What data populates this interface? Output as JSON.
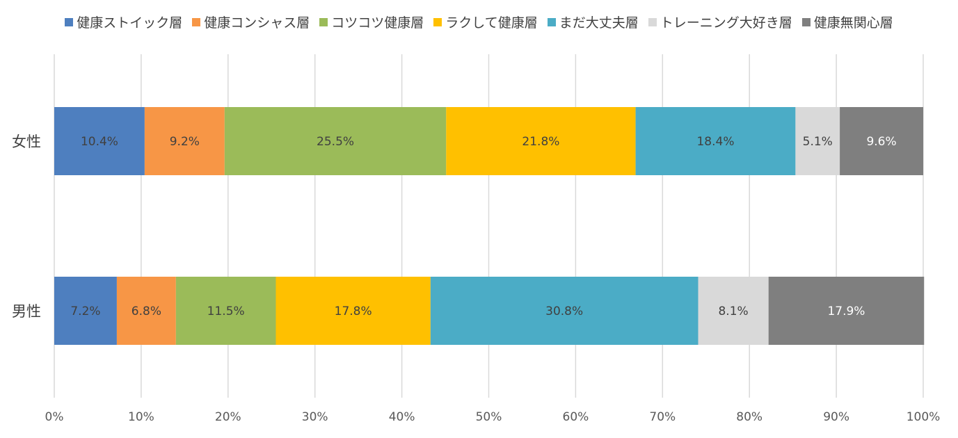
{
  "chart_data": {
    "type": "bar",
    "orientation": "horizontal",
    "stacked": true,
    "categories": [
      "女性",
      "男性"
    ],
    "series": [
      {
        "name": "健康ストイック層",
        "color": "#4e7fbf",
        "values": [
          10.4,
          7.2
        ],
        "labels": [
          "10.4%",
          "7.2%"
        ]
      },
      {
        "name": "健康コンシャス層",
        "color": "#f79646",
        "values": [
          9.2,
          6.8
        ],
        "labels": [
          "9.2%",
          "6.8%"
        ]
      },
      {
        "name": "コツコツ健康層",
        "color": "#9bbb59",
        "values": [
          25.5,
          11.5
        ],
        "labels": [
          "25.5%",
          "11.5%"
        ]
      },
      {
        "name": "ラクして健康層",
        "color": "#ffc000",
        "values": [
          21.8,
          17.8
        ],
        "labels": [
          "21.8%",
          "17.8%"
        ]
      },
      {
        "name": "まだ大丈夫層",
        "color": "#4bacc6",
        "values": [
          18.4,
          30.8
        ],
        "labels": [
          "18.4%",
          "30.8%"
        ]
      },
      {
        "name": "トレーニング大好き層",
        "color": "#d9d9d9",
        "values": [
          5.1,
          8.1
        ],
        "labels": [
          "5.1%",
          "8.1%"
        ]
      },
      {
        "name": "健康無関心層",
        "color": "#7f7f7f",
        "values": [
          9.6,
          17.9
        ],
        "labels": [
          "9.6%",
          "17.9%"
        ]
      }
    ],
    "xlim": [
      0,
      100
    ],
    "xticks": [
      0,
      10,
      20,
      30,
      40,
      50,
      60,
      70,
      80,
      90,
      100
    ],
    "xtick_labels": [
      "0%",
      "10%",
      "20%",
      "30%",
      "40%",
      "50%",
      "60%",
      "70%",
      "80%",
      "90%",
      "100%"
    ],
    "grid": true,
    "legend_position": "top",
    "title": "",
    "xlabel": "",
    "ylabel": ""
  }
}
